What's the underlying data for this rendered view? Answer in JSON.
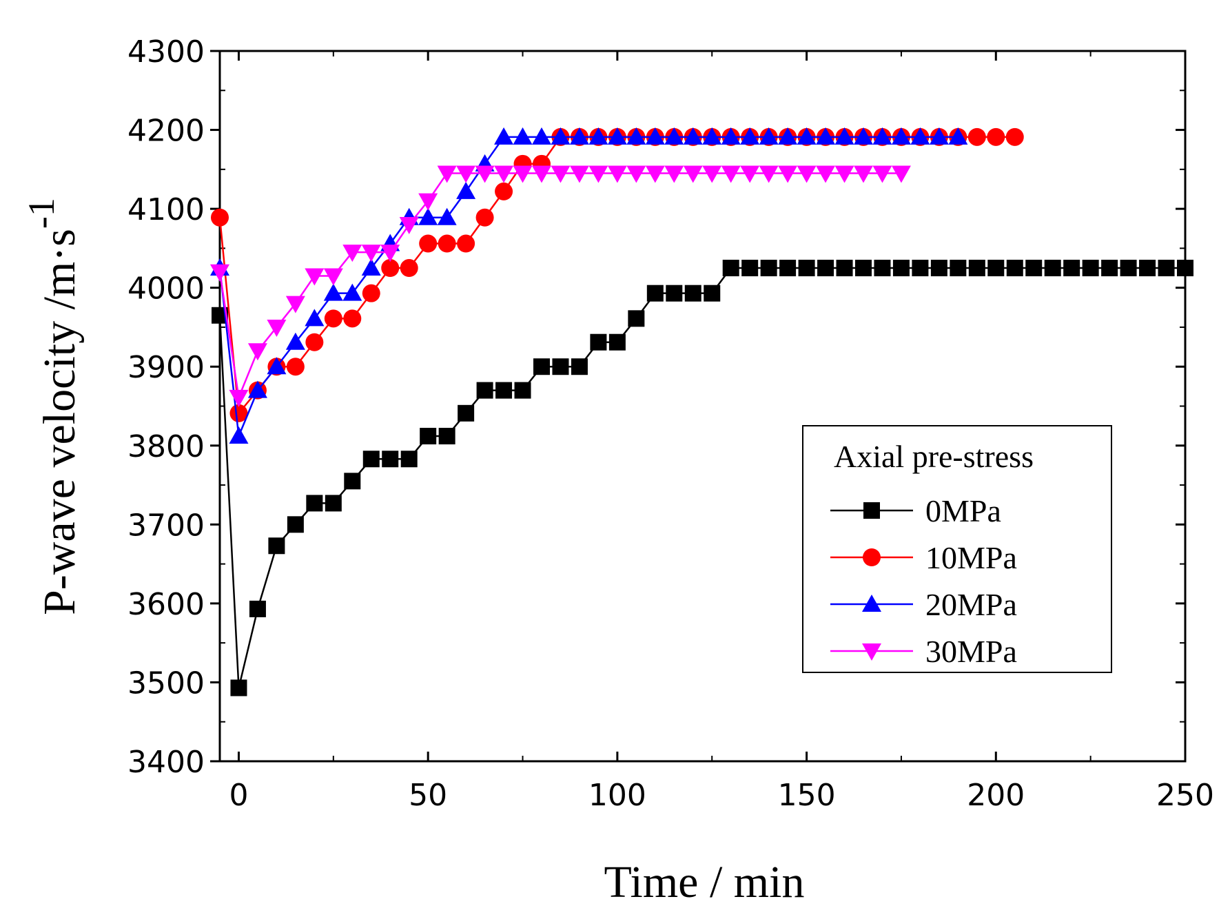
{
  "chart_data": {
    "type": "line",
    "title": "",
    "xlabel": "Time / min",
    "ylabel_main": "P-wave velocity /m·s",
    "ylabel_sup": "-1",
    "xlim": [
      -5,
      250
    ],
    "ylim": [
      3400,
      4300
    ],
    "xticks": [
      0,
      50,
      100,
      150,
      200,
      250
    ],
    "yticks": [
      3400,
      3500,
      3600,
      3700,
      3800,
      3900,
      4000,
      4100,
      4200,
      4300
    ],
    "xtick_labels": [
      "0",
      "50",
      "100",
      "150",
      "200",
      "250"
    ],
    "ytick_labels": [
      "3400",
      "3500",
      "3600",
      "3700",
      "3800",
      "3900",
      "4000",
      "4100",
      "4200",
      "4300"
    ],
    "legend": {
      "title": "Axial pre-stress",
      "position": "lower-right"
    },
    "series": [
      {
        "name": "0MPa",
        "color": "#000000",
        "marker": "square",
        "x": [
          -5,
          0,
          5,
          10,
          15,
          20,
          25,
          30,
          35,
          40,
          45,
          50,
          55,
          60,
          65,
          70,
          75,
          80,
          85,
          90,
          95,
          100,
          105,
          110,
          115,
          120,
          125,
          130,
          135,
          140,
          145,
          150,
          155,
          160,
          165,
          170,
          175,
          180,
          185,
          190,
          195,
          200,
          205,
          210,
          215,
          220,
          225,
          230,
          235,
          240,
          245,
          250
        ],
        "y": [
          3965,
          3493,
          3593,
          3673,
          3700,
          3727,
          3727,
          3755,
          3783,
          3783,
          3783,
          3812,
          3812,
          3841,
          3870,
          3870,
          3870,
          3900,
          3900,
          3900,
          3931,
          3931,
          3961,
          3993,
          3993,
          3993,
          3993,
          4025,
          4025,
          4025,
          4025,
          4025,
          4025,
          4025,
          4025,
          4025,
          4025,
          4025,
          4025,
          4025,
          4025,
          4025,
          4025,
          4025,
          4025,
          4025,
          4025,
          4025,
          4025,
          4025,
          4025,
          4025
        ]
      },
      {
        "name": "10MPa",
        "color": "#ff0000",
        "marker": "circle",
        "x": [
          -5,
          0,
          5,
          10,
          15,
          20,
          25,
          30,
          35,
          40,
          45,
          50,
          55,
          60,
          65,
          70,
          75,
          80,
          85,
          90,
          95,
          100,
          105,
          110,
          115,
          120,
          125,
          130,
          135,
          140,
          145,
          150,
          155,
          160,
          165,
          170,
          175,
          180,
          185,
          190,
          195,
          200,
          205
        ],
        "y": [
          4089,
          3841,
          3870,
          3900,
          3900,
          3931,
          3961,
          3961,
          3993,
          4025,
          4025,
          4056,
          4056,
          4056,
          4089,
          4122,
          4157,
          4157,
          4191,
          4191,
          4191,
          4191,
          4191,
          4191,
          4191,
          4191,
          4191,
          4191,
          4191,
          4191,
          4191,
          4191,
          4191,
          4191,
          4191,
          4191,
          4191,
          4191,
          4191,
          4191,
          4191,
          4191,
          4191
        ]
      },
      {
        "name": "20MPa",
        "color": "#0000ff",
        "marker": "triangle-up",
        "x": [
          -5,
          0,
          5,
          10,
          15,
          20,
          25,
          30,
          35,
          40,
          45,
          50,
          55,
          60,
          65,
          70,
          75,
          80,
          85,
          90,
          95,
          100,
          105,
          110,
          115,
          120,
          125,
          130,
          135,
          140,
          145,
          150,
          155,
          160,
          165,
          170,
          175,
          180,
          185,
          190
        ],
        "y": [
          4025,
          3812,
          3870,
          3900,
          3931,
          3961,
          3993,
          3993,
          4025,
          4056,
          4089,
          4089,
          4089,
          4122,
          4157,
          4191,
          4191,
          4191,
          4191,
          4191,
          4191,
          4191,
          4191,
          4191,
          4191,
          4191,
          4191,
          4191,
          4191,
          4191,
          4191,
          4191,
          4191,
          4191,
          4191,
          4191,
          4191,
          4191,
          4191,
          4191
        ]
      },
      {
        "name": "30MPa",
        "color": "#ff00ff",
        "marker": "triangle-down",
        "x": [
          -5,
          0,
          5,
          10,
          15,
          20,
          25,
          30,
          35,
          40,
          45,
          50,
          55,
          60,
          65,
          70,
          75,
          80,
          85,
          90,
          95,
          100,
          105,
          110,
          115,
          120,
          125,
          130,
          135,
          140,
          145,
          150,
          155,
          160,
          165,
          170,
          175
        ],
        "y": [
          4020,
          3861,
          3920,
          3950,
          3980,
          4015,
          4015,
          4045,
          4045,
          4045,
          4080,
          4110,
          4145,
          4145,
          4145,
          4145,
          4145,
          4145,
          4145,
          4145,
          4145,
          4145,
          4145,
          4145,
          4145,
          4145,
          4145,
          4145,
          4145,
          4145,
          4145,
          4145,
          4145,
          4145,
          4145,
          4145,
          4145
        ]
      }
    ]
  }
}
